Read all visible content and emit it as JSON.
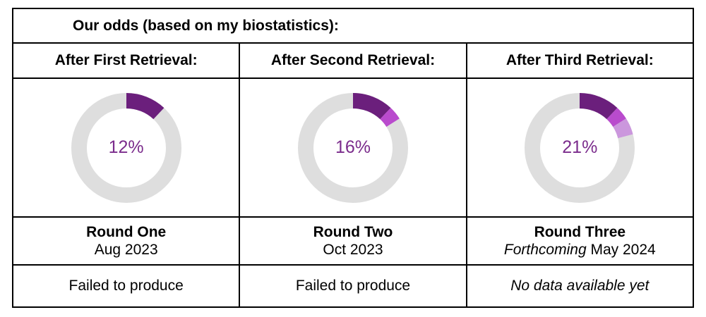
{
  "table": {
    "title": "Our odds (based on my biostatistics):",
    "border_color": "#000000",
    "background": "#ffffff"
  },
  "columns": [
    {
      "header": "After First Retrieval:",
      "round_name": "Round One",
      "round_date_italic": "",
      "round_date": "Aug 2023",
      "status": "Failed to produce"
    },
    {
      "header": "After Second Retrieval:",
      "round_name": "Round Two",
      "round_date_italic": "",
      "round_date": "Oct 2023",
      "status": "Failed to produce"
    },
    {
      "header": "After Third Retrieval:",
      "round_name": "Round Three",
      "round_date_italic": "Forthcoming",
      "round_date": " May 2024",
      "status": "No data available yet"
    }
  ],
  "chart_data": [
    {
      "type": "pie",
      "subtype": "donut",
      "title": "After First Retrieval",
      "label": "12%",
      "total_percent": 12,
      "start_angle_deg": 0,
      "direction": "clockwise",
      "segments": [
        {
          "name": "odds-round-one",
          "value": 12,
          "color": "#6b1f7c"
        }
      ],
      "track_color": "#dedede",
      "label_color": "#7b2c8c"
    },
    {
      "type": "pie",
      "subtype": "donut",
      "title": "After Second Retrieval",
      "label": "16%",
      "total_percent": 16,
      "start_angle_deg": 0,
      "direction": "clockwise",
      "segments": [
        {
          "name": "odds-round-one",
          "value": 12,
          "color": "#6b1f7c"
        },
        {
          "name": "odds-round-two-increment",
          "value": 4,
          "color": "#b94bcd"
        }
      ],
      "track_color": "#dedede",
      "label_color": "#7b2c8c"
    },
    {
      "type": "pie",
      "subtype": "donut",
      "title": "After Third Retrieval",
      "label": "21%",
      "total_percent": 21,
      "start_angle_deg": 0,
      "direction": "clockwise",
      "segments": [
        {
          "name": "odds-round-one",
          "value": 12,
          "color": "#6b1f7c"
        },
        {
          "name": "odds-round-two-increment",
          "value": 4,
          "color": "#b94bcd"
        },
        {
          "name": "odds-round-three-increment",
          "value": 5,
          "color": "#cb97dd"
        }
      ],
      "track_color": "#dedede",
      "label_color": "#7b2c8c"
    }
  ]
}
